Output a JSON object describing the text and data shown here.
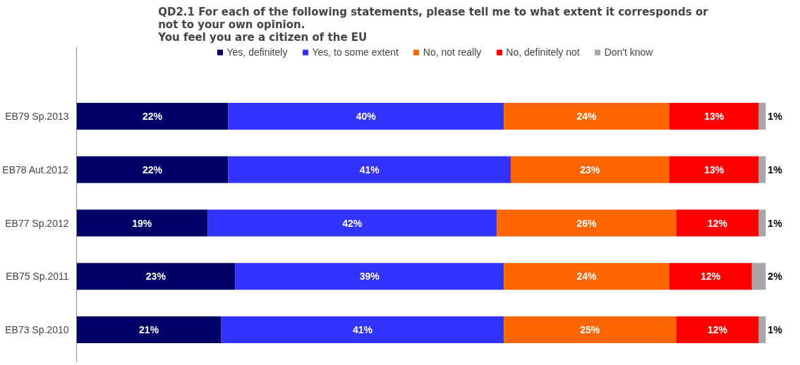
{
  "chart_data": {
    "type": "bar",
    "orientation": "horizontal",
    "stacked": true,
    "title": "QD2.1 For each of the following  statements, please tell me to what extent it corresponds or\nnot to your own opinion.\nYou feel you are a citizen of the EU",
    "categories": [
      "EB79 Sp.2013",
      "EB78 Aut.2012",
      "EB77 Sp.2012",
      "EB75 Sp.2011",
      "EB73 Sp.2010"
    ],
    "xlim": [
      0,
      100
    ],
    "series": [
      {
        "name": "Yes, definitely",
        "color": "#000066",
        "values": [
          22,
          22,
          19,
          23,
          21
        ],
        "value_labels": [
          "22%",
          "22%",
          "19%",
          "23%",
          "21%"
        ]
      },
      {
        "name": "Yes, to some extent",
        "color": "#3333ff",
        "values": [
          40,
          41,
          42,
          39,
          41
        ],
        "value_labels": [
          "40%",
          "41%",
          "42%",
          "39%",
          "41%"
        ]
      },
      {
        "name": "No, not really",
        "color": "#ff6600",
        "values": [
          24,
          23,
          26,
          24,
          25
        ],
        "value_labels": [
          "24%",
          "23%",
          "26%",
          "24%",
          "25%"
        ]
      },
      {
        "name": "No, definitely not",
        "color": "#ff0000",
        "values": [
          13,
          13,
          12,
          12,
          12
        ],
        "value_labels": [
          "13%",
          "13%",
          "12%",
          "12%",
          "12%"
        ]
      },
      {
        "name": "Don't know",
        "color": "#a6a6a6",
        "values": [
          1,
          1,
          1,
          2,
          1
        ],
        "value_labels": [
          "1%",
          "1%",
          "1%",
          "2%",
          "1%"
        ]
      }
    ],
    "legend": "top",
    "grid": false,
    "tick_labels": "y"
  }
}
